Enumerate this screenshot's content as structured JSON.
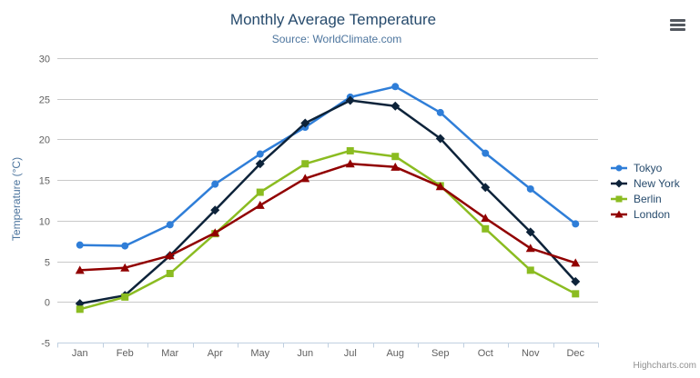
{
  "header": {
    "title": "Monthly Average Temperature",
    "subtitle": "Source: WorldClimate.com"
  },
  "credit_label": "Highcharts.com",
  "chart_data": {
    "type": "line",
    "title": "Monthly Average Temperature",
    "subtitle": "Source: WorldClimate.com",
    "categories": [
      "Jan",
      "Feb",
      "Mar",
      "Apr",
      "May",
      "Jun",
      "Jul",
      "Aug",
      "Sep",
      "Oct",
      "Nov",
      "Dec"
    ],
    "series": [
      {
        "name": "Tokyo",
        "color": "#2f7ed8",
        "marker": "circle",
        "values": [
          7.0,
          6.9,
          9.5,
          14.5,
          18.2,
          21.5,
          25.2,
          26.5,
          23.3,
          18.3,
          13.9,
          9.6
        ]
      },
      {
        "name": "New York",
        "color": "#0d233a",
        "marker": "diamond",
        "values": [
          -0.2,
          0.8,
          5.7,
          11.3,
          17.0,
          22.0,
          24.8,
          24.1,
          20.1,
          14.1,
          8.6,
          2.5
        ]
      },
      {
        "name": "Berlin",
        "color": "#8bbc21",
        "marker": "square",
        "values": [
          -0.9,
          0.6,
          3.5,
          8.4,
          13.5,
          17.0,
          18.6,
          17.9,
          14.3,
          9.0,
          3.9,
          1.0
        ]
      },
      {
        "name": "London",
        "color": "#910000",
        "marker": "triangle",
        "values": [
          3.9,
          4.2,
          5.7,
          8.5,
          11.9,
          15.2,
          17.0,
          16.6,
          14.2,
          10.3,
          6.6,
          4.8
        ]
      }
    ],
    "xlabel": "",
    "ylabel": "Temperature (°C)",
    "ylim": [
      -5,
      30
    ],
    "ytick_step": 5,
    "grid": true,
    "legend_position": "right",
    "style_colors": {
      "grid_line": "#c9c9c9",
      "axis_line": "#c0d0e0",
      "tick_label": "#606060",
      "axis_title": "#4d759e",
      "legend_text": "#274b6d",
      "title_text": "#274b6d",
      "subtitle_text": "#4d759e",
      "credit_text": "#909090"
    }
  }
}
